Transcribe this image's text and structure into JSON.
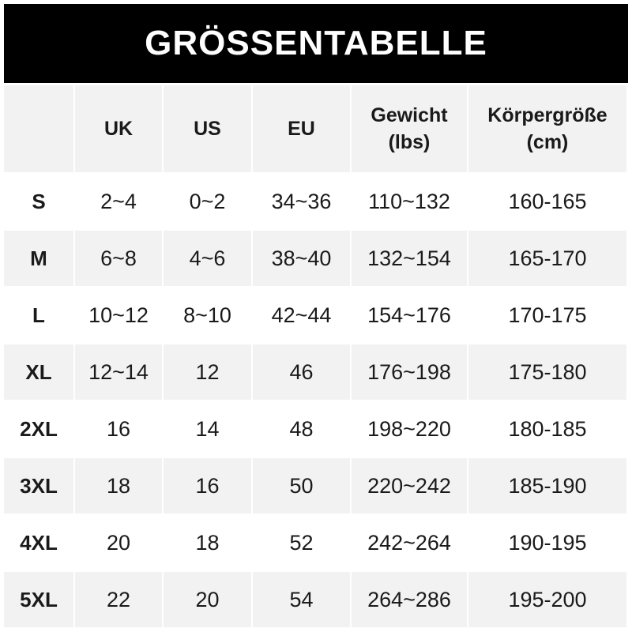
{
  "title": "GRÖSSENTABELLE",
  "columns": [
    "",
    "UK",
    "US",
    "EU",
    "Gewicht\n(lbs)",
    "Körpergröße\n(cm)"
  ],
  "header_lines": [
    [
      "",
      ""
    ],
    [
      "UK",
      ""
    ],
    [
      "US",
      ""
    ],
    [
      "EU",
      ""
    ],
    [
      "Gewicht",
      "(lbs)"
    ],
    [
      "Körpergröße",
      "(cm)"
    ]
  ],
  "rows": [
    [
      "S",
      "2~4",
      "0~2",
      "34~36",
      "110~132",
      "160-165"
    ],
    [
      "M",
      "6~8",
      "4~6",
      "38~40",
      "132~154",
      "165-170"
    ],
    [
      "L",
      "10~12",
      "8~10",
      "42~44",
      "154~176",
      "170-175"
    ],
    [
      "XL",
      "12~14",
      "12",
      "46",
      "176~198",
      "175-180"
    ],
    [
      "2XL",
      "16",
      "14",
      "48",
      "198~220",
      "180-185"
    ],
    [
      "3XL",
      "18",
      "16",
      "50",
      "220~242",
      "185-190"
    ],
    [
      "4XL",
      "20",
      "18",
      "52",
      "242~264",
      "190-195"
    ],
    [
      "5XL",
      "22",
      "20",
      "54",
      "264~286",
      "195-200"
    ]
  ],
  "colors": {
    "header_bg": "#000000",
    "stripe": "#f2f2f2"
  }
}
